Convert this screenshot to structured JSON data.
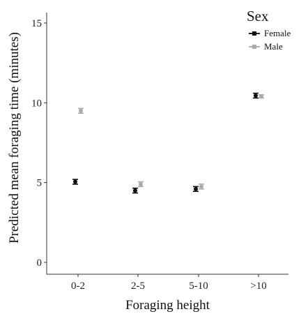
{
  "chart_data": {
    "type": "scatter",
    "xlabel": "Foraging height",
    "ylabel": "Predicted mean foraging time (minutes)",
    "categories": [
      "0-2",
      "2-5",
      "5-10",
      ">10"
    ],
    "ylim": [
      0,
      15
    ],
    "yticks": [
      0,
      5,
      10,
      15
    ],
    "grid": false,
    "legend": {
      "title": "Sex",
      "placement": "top-right"
    },
    "series": [
      {
        "name": "Female",
        "color": "#111111",
        "values": [
          5.05,
          4.5,
          4.6,
          10.45
        ],
        "err_low": [
          4.9,
          4.35,
          4.45,
          10.3
        ],
        "err_high": [
          5.2,
          4.65,
          4.75,
          10.6
        ]
      },
      {
        "name": "Male",
        "color": "#aaaaaa",
        "values": [
          9.5,
          4.9,
          4.75,
          10.4
        ],
        "err_low": [
          9.35,
          4.75,
          4.6,
          10.3
        ],
        "err_high": [
          9.65,
          5.05,
          4.9,
          10.5
        ]
      }
    ]
  }
}
